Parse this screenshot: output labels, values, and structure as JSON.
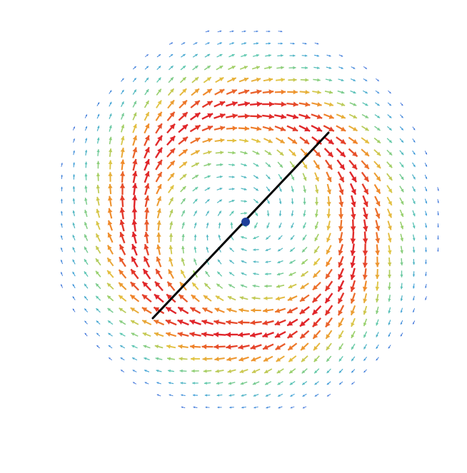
{
  "figure": {
    "background": "#ffffff",
    "axis_color": "#000000",
    "center_point_color": "#1f3f9a",
    "colormap": [
      "#3b5bdb",
      "#3fa0d8",
      "#5ec8b0",
      "#9ad06a",
      "#e2c443",
      "#f08a2a",
      "#e0242a"
    ]
  }
}
